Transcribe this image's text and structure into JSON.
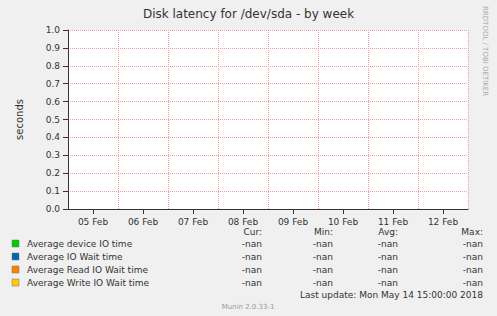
{
  "chart_data": {
    "type": "line",
    "title": "Disk latency for /dev/sda - by week",
    "y_label": "seconds",
    "categories": [
      "05 Feb",
      "06 Feb",
      "07 Feb",
      "08 Feb",
      "09 Feb",
      "10 Feb",
      "11 Feb",
      "12 Feb"
    ],
    "series": [
      {
        "name": "Average device IO time",
        "color": "#00cc00",
        "values": [
          null,
          null,
          null,
          null,
          null,
          null,
          null,
          null
        ],
        "summary": [
          "-nan",
          "-nan",
          "-nan",
          "-nan"
        ]
      },
      {
        "name": "Average IO Wait time",
        "color": "#0066b3",
        "values": [
          null,
          null,
          null,
          null,
          null,
          null,
          null,
          null
        ],
        "summary": [
          "-nan",
          "-nan",
          "-nan",
          "-nan"
        ]
      },
      {
        "name": "Average Read IO Wait time",
        "color": "#ff8000",
        "values": [
          null,
          null,
          null,
          null,
          null,
          null,
          null,
          null
        ],
        "summary": [
          "-nan",
          "-nan",
          "-nan",
          "-nan"
        ]
      },
      {
        "name": "Average Write IO Wait time",
        "color": "#ffcc00",
        "values": [
          null,
          null,
          null,
          null,
          null,
          null,
          null,
          null
        ],
        "summary": [
          "-nan",
          "-nan",
          "-nan",
          "-nan"
        ]
      }
    ],
    "summary_columns": [
      "Cur:",
      "Min:",
      "Avg:",
      "Max:"
    ],
    "ylim": [
      0,
      1
    ],
    "yticks": [
      {
        "value": 0,
        "label": "0.0"
      },
      0.1,
      0.2,
      0.3,
      0.4,
      0.5,
      0.6,
      0.7,
      0.8,
      0.9,
      {
        "value": 1,
        "label": "1.0"
      }
    ],
    "grid": true,
    "annotations": [
      "Last update: Mon May 14 15:00:00 2018",
      "Munin 2.0.33-1",
      "RRDTOOL / TOBI OETIKER"
    ]
  }
}
